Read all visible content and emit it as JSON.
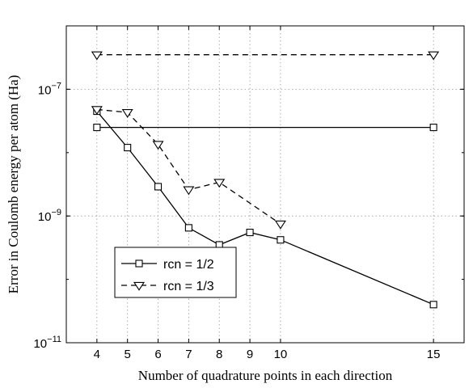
{
  "chart_data": {
    "type": "line",
    "title": "",
    "xlabel": "Number of quadrature points in each direction",
    "ylabel": "Error in Coulomb energy per atom (Ha)",
    "xticks": [
      4,
      5,
      6,
      7,
      8,
      9,
      10,
      15
    ],
    "xlim": [
      3,
      16
    ],
    "ylim": [
      1e-11,
      1e-06
    ],
    "yscale": "log",
    "yticks": [
      {
        "value": 1e-11,
        "label_base": "10",
        "label_exp": "−11"
      },
      {
        "value": 1e-09,
        "label_base": "10",
        "label_exp": "−9"
      },
      {
        "value": 1e-07,
        "label_base": "10",
        "label_exp": "−7"
      }
    ],
    "grid": true,
    "legend_position": "lower-left",
    "series": [
      {
        "name": "rcn = 1/2",
        "style": "solid",
        "marker": "square",
        "color": "#000000",
        "x": [
          4,
          5,
          6,
          7,
          8,
          9,
          10,
          15
        ],
        "y": [
          4.5e-08,
          1.2e-08,
          2.9e-09,
          6.5e-10,
          3.5e-10,
          5.5e-10,
          4.2e-10,
          4e-11
        ]
      },
      {
        "name": "rcn = 1/3",
        "style": "dashed",
        "marker": "triangle-down",
        "color": "#000000",
        "x": [
          4,
          5,
          6,
          7,
          8,
          9,
          10
        ],
        "y": [
          4.8e-08,
          4.3e-08,
          1.35e-08,
          2.6e-09,
          3.4e-09,
          null,
          7.5e-10
        ]
      },
      {
        "name": "",
        "style": "solid",
        "marker": "square",
        "color": "#000000",
        "x": [
          4,
          15
        ],
        "y": [
          2.5e-08,
          2.5e-08
        ]
      },
      {
        "name": "",
        "style": "dashed",
        "marker": "triangle-down",
        "color": "#000000",
        "x": [
          4,
          15
        ],
        "y": [
          3.5e-07,
          3.5e-07
        ]
      }
    ]
  }
}
